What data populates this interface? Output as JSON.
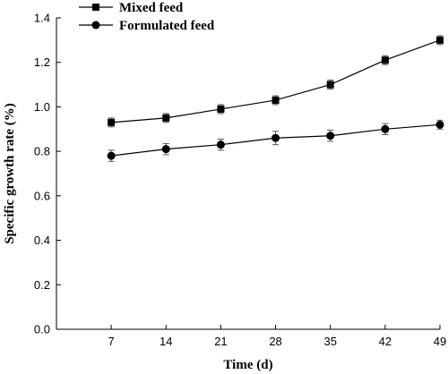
{
  "chart_data": {
    "type": "line",
    "xlabel": "Time (d)",
    "ylabel": "Specific growth rate (%)",
    "categories": [
      "7",
      "14",
      "21",
      "28",
      "35",
      "42",
      "49"
    ],
    "x": [
      7,
      14,
      21,
      28,
      35,
      42,
      49
    ],
    "xlim": [
      0,
      49
    ],
    "ylim": [
      0.0,
      1.4
    ],
    "yticks": [
      "0.0",
      "0.2",
      "0.4",
      "0.6",
      "0.8",
      "1.0",
      "1.2",
      "1.4"
    ],
    "legend_position": "top-left",
    "grid": false,
    "series": [
      {
        "name": "Mixed feed",
        "marker": "square",
        "color": "#000000",
        "values": [
          0.93,
          0.95,
          0.99,
          1.03,
          1.1,
          1.21,
          1.3
        ],
        "errors": [
          0.02,
          0.02,
          0.02,
          0.02,
          0.02,
          0.02,
          0.02
        ]
      },
      {
        "name": "Formulated feed",
        "marker": "circle",
        "color": "#000000",
        "values": [
          0.78,
          0.81,
          0.83,
          0.86,
          0.87,
          0.9,
          0.92
        ],
        "errors": [
          0.025,
          0.025,
          0.025,
          0.03,
          0.025,
          0.025,
          0.02
        ]
      }
    ]
  }
}
